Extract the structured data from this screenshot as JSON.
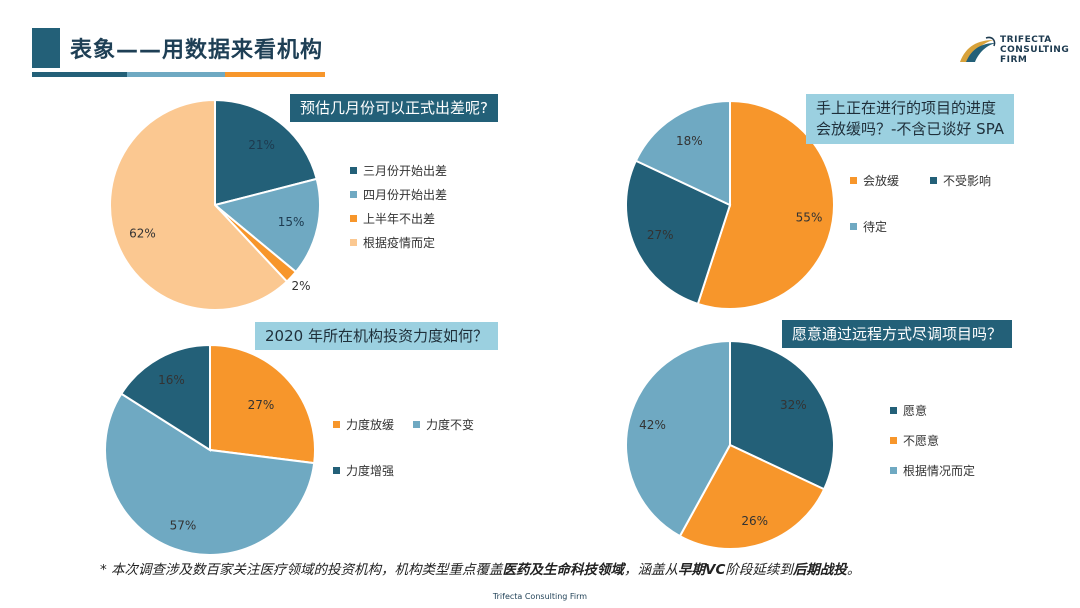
{
  "header": {
    "title": "表象——用数据来看机构"
  },
  "logo": {
    "line1": "TRIFECTA",
    "line2": "CONSULTING",
    "line3": "FIRM",
    "icon": "horse-head-swoosh-icon"
  },
  "colors": {
    "navy": "#236078",
    "teal": "#6fa9c2",
    "orange": "#f7962b",
    "peach": "#fbc891",
    "light_blue": "#9bd0e0"
  },
  "chart_data": [
    {
      "type": "pie",
      "title": "预估几月份可以正式出差呢?",
      "categories": [
        "三月份开始出差",
        "四月份开始出差",
        "上半年不出差",
        "根据疫情而定"
      ],
      "values": [
        21,
        15,
        2,
        62
      ],
      "labels": [
        "21%",
        "15%",
        "2%",
        "62%"
      ],
      "colors": [
        "#236078",
        "#6fa9c2",
        "#f7962b",
        "#fbc891"
      ],
      "legend_order": [
        0,
        1,
        2,
        3
      ]
    },
    {
      "type": "pie",
      "title": "手上正在进行的项目的进度会放缓吗？-不含已谈好 SPA",
      "title_lines": [
        "手上正在进行的项目的进度",
        "会放缓吗？-不含已谈好  SPA"
      ],
      "categories": [
        "会放缓",
        "不受影响",
        "待定"
      ],
      "values": [
        55,
        27,
        18
      ],
      "labels": [
        "55%",
        "27%",
        "18%"
      ],
      "colors": [
        "#f7962b",
        "#236078",
        "#6fa9c2"
      ],
      "legend_order": [
        0,
        1,
        2
      ]
    },
    {
      "type": "pie",
      "title": "2020 年所在机构投资力度如何？",
      "categories": [
        "力度放缓",
        "力度不变",
        "力度增强"
      ],
      "values": [
        27,
        57,
        16
      ],
      "labels": [
        "27%",
        "57%",
        "16%"
      ],
      "colors": [
        "#f7962b",
        "#6fa9c2",
        "#236078"
      ],
      "legend_order": [
        0,
        1,
        2
      ]
    },
    {
      "type": "pie",
      "title": "愿意通过远程方式尽调项目吗？",
      "categories": [
        "愿意",
        "不愿意",
        "根据情况而定"
      ],
      "values": [
        32,
        26,
        42
      ],
      "labels": [
        "32%",
        "26%",
        "42%"
      ],
      "colors": [
        "#236078",
        "#f7962b",
        "#6fa9c2"
      ],
      "legend_order": [
        0,
        1,
        2
      ]
    }
  ],
  "footnote": {
    "p1": "* 本次调查涉及数百家关注医疗领域的投资机构，机构类型重点覆盖",
    "b1": "医药及生命科技领域",
    "p2": "，涵盖从",
    "b2": "早期VC",
    "p3": "阶段延续到",
    "b3": "后期战投",
    "p4": "。"
  },
  "footer": {
    "text": "Trifecta Consulting Firm"
  }
}
